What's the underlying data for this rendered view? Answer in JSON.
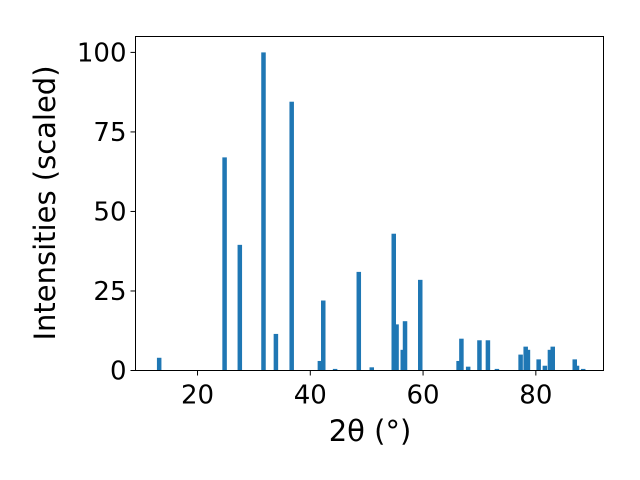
{
  "chart_data": {
    "type": "bar",
    "xlabel": "2θ (°)",
    "ylabel": "Intensities (scaled)",
    "xlim": [
      9,
      92
    ],
    "ylim": [
      0,
      105
    ],
    "xticks": [
      "20",
      "40",
      "60",
      "80"
    ],
    "yticks": [
      "0",
      "25",
      "50",
      "75",
      "100"
    ],
    "grid": false,
    "bar_color": "#1f77b4",
    "x": [
      13.2,
      24.8,
      27.5,
      31.7,
      33.9,
      36.7,
      41.7,
      42.3,
      44.4,
      48.6,
      50.9,
      54.8,
      55.3,
      56.4,
      56.8,
      59.5,
      66.3,
      66.8,
      68.0,
      70.0,
      71.5,
      73.1,
      77.3,
      78.2,
      78.6,
      80.5,
      81.6,
      82.5,
      83.0,
      86.9,
      87.3,
      88.4
    ],
    "values": [
      4.0,
      67.0,
      39.5,
      100.0,
      11.5,
      84.5,
      3.0,
      22.0,
      0.5,
      31.0,
      1.0,
      43.0,
      14.5,
      6.5,
      15.5,
      28.5,
      3.0,
      10.0,
      1.2,
      9.5,
      9.5,
      0.5,
      5.0,
      7.5,
      6.5,
      3.5,
      1.5,
      6.5,
      7.5,
      3.5,
      1.5,
      0.5
    ]
  }
}
